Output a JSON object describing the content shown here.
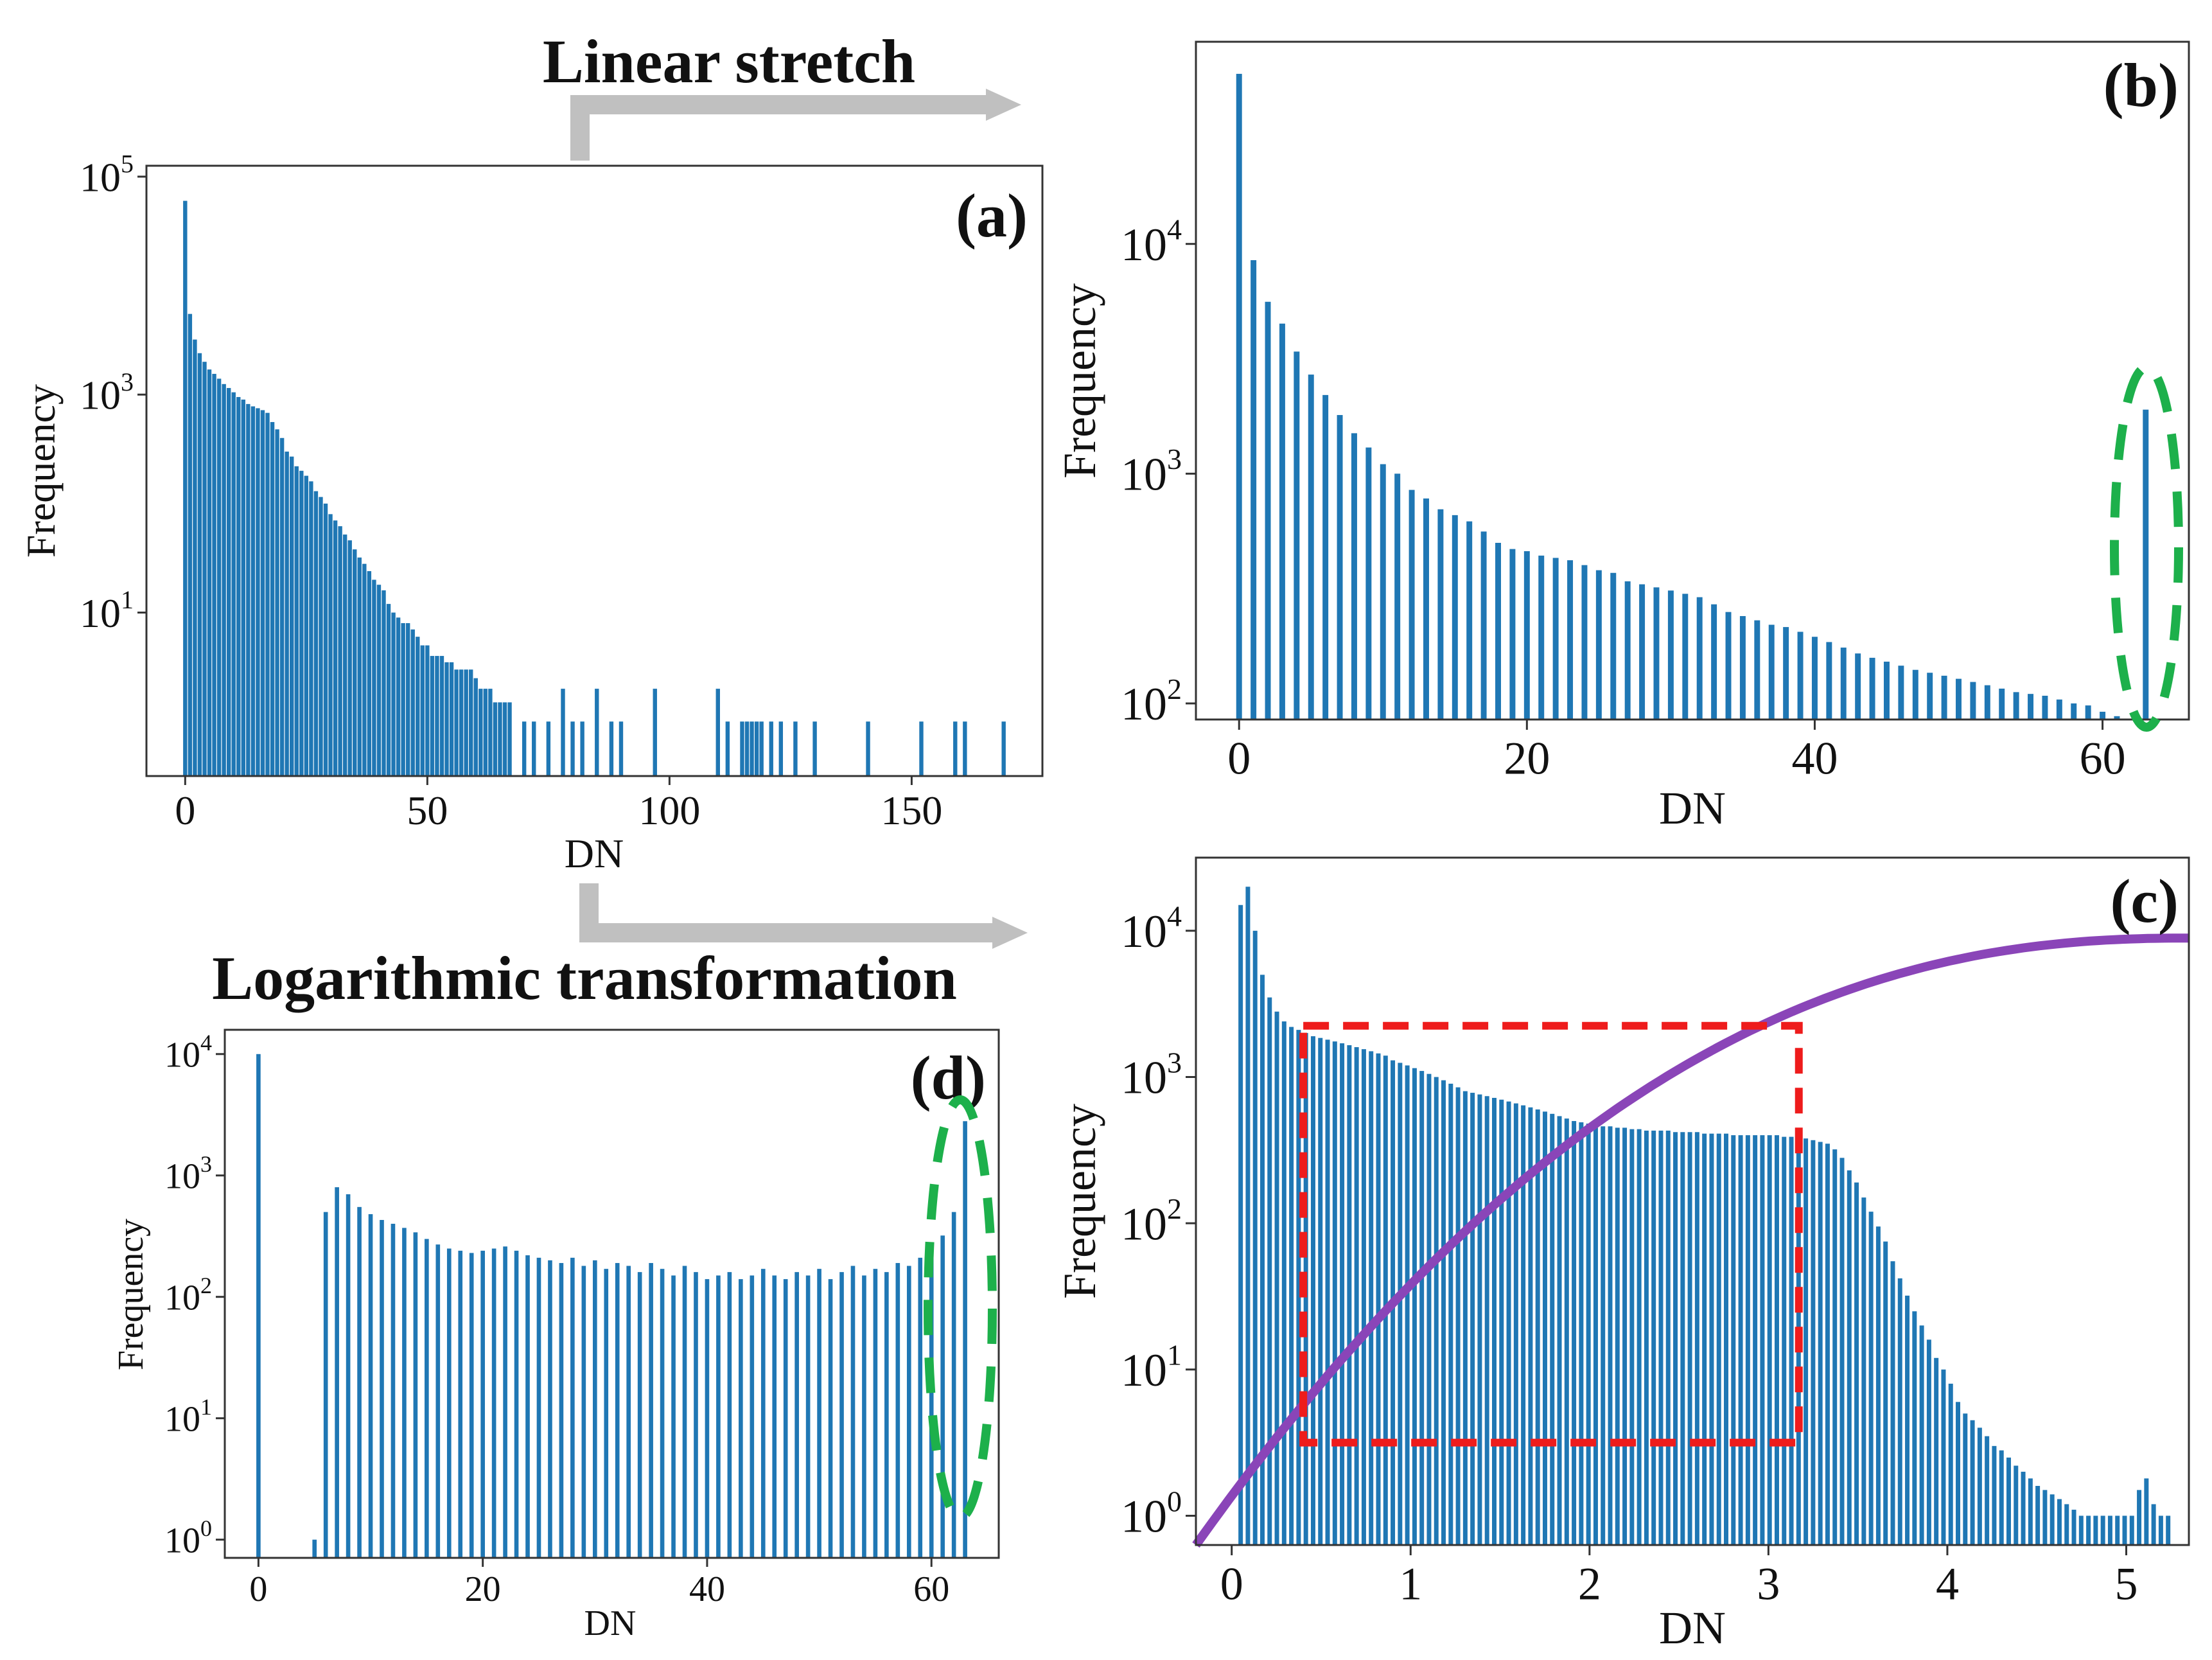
{
  "figure": {
    "colors": {
      "bar": "#1f77b4",
      "arrow": "#c0c0c0",
      "highlight_ellipse": "#1db04b",
      "highlight_box": "#ee1c1c",
      "curve": "#8a45b8",
      "axis": "#333333"
    },
    "arrows": [
      {
        "label": "Linear stretch",
        "from": "(a)",
        "to": "(b)"
      },
      {
        "label": "Logarithmic transformation",
        "from": "(a)",
        "to": "(c)"
      }
    ]
  },
  "chart_data": [
    {
      "panel": "(a)",
      "type": "bar",
      "yscale": "log",
      "xlabel": "DN",
      "ylabel": "Frequency",
      "xlim": [
        -8,
        177
      ],
      "ylim_log10": [
        -0.5,
        5.1
      ],
      "xticks": [
        0,
        50,
        100,
        150
      ],
      "xtick_labels": [
        "0",
        "50",
        "100",
        "150"
      ],
      "yticks_log10": [
        1,
        3,
        5
      ],
      "ytick_labels": [
        {
          "base": "10",
          "exp": "1"
        },
        {
          "base": "10",
          "exp": "3"
        },
        {
          "base": "10",
          "exp": "5"
        }
      ],
      "bar_width": 0.85,
      "x": [
        0,
        1,
        2,
        3,
        4,
        5,
        6,
        7,
        8,
        9,
        10,
        11,
        12,
        13,
        14,
        15,
        16,
        17,
        18,
        19,
        20,
        21,
        22,
        23,
        24,
        25,
        26,
        27,
        28,
        29,
        30,
        31,
        32,
        33,
        34,
        35,
        36,
        37,
        38,
        39,
        40,
        41,
        42,
        43,
        44,
        45,
        46,
        47,
        48,
        49,
        50,
        51,
        52,
        53,
        54,
        55,
        56,
        57,
        58,
        59,
        60,
        61,
        62,
        63,
        64,
        65,
        66,
        67,
        70,
        72,
        75,
        78,
        80,
        82,
        85,
        88,
        90,
        97,
        110,
        112,
        115,
        116,
        117,
        118,
        119,
        121,
        123,
        126,
        130,
        141,
        152,
        159,
        161,
        169
      ],
      "y": [
        60000,
        5500,
        3200,
        2400,
        2000,
        1700,
        1550,
        1400,
        1250,
        1150,
        1050,
        950,
        900,
        820,
        780,
        750,
        720,
        680,
        560,
        480,
        400,
        300,
        270,
        220,
        200,
        180,
        160,
        130,
        115,
        100,
        80,
        70,
        62,
        52,
        46,
        38,
        32,
        28,
        24,
        20,
        18,
        16,
        12,
        10,
        9,
        8,
        8,
        7,
        6,
        5,
        5,
        4,
        4,
        4,
        3.5,
        3.5,
        3,
        3,
        3,
        3,
        2.5,
        2,
        2,
        2,
        1.5,
        1.5,
        1.5,
        1.5,
        1,
        1,
        1,
        2,
        1,
        1,
        2,
        1,
        1,
        2,
        2,
        1,
        1,
        1,
        1,
        1,
        1,
        1,
        1,
        1,
        1,
        1,
        1,
        1,
        1,
        1
      ]
    },
    {
      "panel": "(b)",
      "type": "bar",
      "yscale": "log",
      "xlabel": "DN",
      "ylabel": "Frequency",
      "xlim": [
        -3,
        66
      ],
      "ylim_log10": [
        1.93,
        4.88
      ],
      "xticks": [
        0,
        20,
        40,
        60
      ],
      "xtick_labels": [
        "0",
        "20",
        "40",
        "60"
      ],
      "yticks_log10": [
        2,
        3,
        4
      ],
      "ytick_labels": [
        {
          "base": "10",
          "exp": "2"
        },
        {
          "base": "10",
          "exp": "3"
        },
        {
          "base": "10",
          "exp": "4"
        }
      ],
      "bar_width": 0.4,
      "x": [
        0,
        1,
        2,
        3,
        4,
        5,
        6,
        7,
        8,
        9,
        10,
        11,
        12,
        13,
        14,
        15,
        16,
        17,
        18,
        19,
        20,
        21,
        22,
        23,
        24,
        25,
        26,
        27,
        28,
        29,
        30,
        31,
        32,
        33,
        34,
        35,
        36,
        37,
        38,
        39,
        40,
        41,
        42,
        43,
        44,
        45,
        46,
        47,
        48,
        49,
        50,
        51,
        52,
        53,
        54,
        55,
        56,
        57,
        58,
        59,
        60,
        61,
        62,
        63
      ],
      "y": [
        55000,
        8500,
        5600,
        4500,
        3400,
        2700,
        2200,
        1800,
        1500,
        1300,
        1100,
        1000,
        850,
        780,
        700,
        660,
        620,
        560,
        500,
        470,
        460,
        440,
        430,
        420,
        400,
        380,
        370,
        340,
        330,
        320,
        310,
        300,
        290,
        270,
        250,
        240,
        230,
        220,
        215,
        205,
        195,
        185,
        175,
        165,
        158,
        152,
        146,
        140,
        136,
        132,
        128,
        124,
        120,
        116,
        112,
        110,
        108,
        104,
        100,
        98,
        92,
        88,
        82,
        1900
      ]
    },
    {
      "panel": "(c)",
      "type": "bar",
      "yscale": "log",
      "xlabel": "DN",
      "ylabel": "Frequency",
      "xlim": [
        -0.2,
        5.35
      ],
      "ylim_log10": [
        -0.2,
        4.5
      ],
      "xticks": [
        0,
        1,
        2,
        3,
        4,
        5
      ],
      "xtick_labels": [
        "0",
        "1",
        "2",
        "3",
        "4",
        "5"
      ],
      "yticks_log10": [
        0,
        1,
        2,
        3,
        4
      ],
      "ytick_labels": [
        {
          "base": "10",
          "exp": "0"
        },
        {
          "base": "10",
          "exp": "1"
        },
        {
          "base": "10",
          "exp": "2"
        },
        {
          "base": "10",
          "exp": "3"
        },
        {
          "base": "10",
          "exp": "4"
        }
      ],
      "bar_x_start": 0.05,
      "bar_x_step": 0.0405,
      "bar_width_frac": 0.62,
      "y": [
        15000,
        20000,
        10000,
        5000,
        3500,
        2800,
        2400,
        2200,
        2100,
        2000,
        1900,
        1850,
        1800,
        1750,
        1700,
        1650,
        1600,
        1550,
        1500,
        1450,
        1400,
        1300,
        1250,
        1200,
        1150,
        1100,
        1050,
        1000,
        950,
        900,
        850,
        800,
        780,
        760,
        740,
        720,
        700,
        680,
        660,
        640,
        620,
        600,
        580,
        560,
        540,
        520,
        500,
        490,
        480,
        470,
        460,
        460,
        450,
        450,
        440,
        440,
        430,
        430,
        430,
        430,
        420,
        420,
        420,
        420,
        410,
        410,
        410,
        410,
        400,
        400,
        400,
        400,
        400,
        400,
        400,
        390,
        390,
        380,
        380,
        370,
        360,
        350,
        320,
        280,
        230,
        190,
        150,
        120,
        95,
        75,
        55,
        42,
        32,
        25,
        20,
        16,
        12,
        10,
        8,
        6,
        5,
        4.5,
        4,
        3.5,
        3,
        2.8,
        2.5,
        2.2,
        2,
        1.8,
        1.6,
        1.5,
        1.4,
        1.3,
        1.2,
        1.1,
        1,
        1,
        1,
        1,
        1,
        1,
        1,
        1,
        1.5,
        1.8,
        1.2,
        1,
        1
      ],
      "curve": {
        "name": "log transform",
        "y_log10_start": -0.2,
        "y_log10_end": 3.95
      },
      "box": {
        "x0": 0.4,
        "x1": 3.17,
        "y0_log10": 0.5,
        "y1_log10": 3.35
      }
    },
    {
      "panel": "(d)",
      "type": "bar",
      "yscale": "log",
      "xlabel": "DN",
      "ylabel": "Frequency",
      "xlim": [
        -3,
        66
      ],
      "ylim_log10": [
        -0.15,
        4.2
      ],
      "xticks": [
        0,
        20,
        40,
        60
      ],
      "xtick_labels": [
        "0",
        "20",
        "40",
        "60"
      ],
      "yticks_log10": [
        0,
        1,
        2,
        3,
        4
      ],
      "ytick_labels": [
        {
          "base": "10",
          "exp": "0"
        },
        {
          "base": "10",
          "exp": "1"
        },
        {
          "base": "10",
          "exp": "2"
        },
        {
          "base": "10",
          "exp": "3"
        },
        {
          "base": "10",
          "exp": "4"
        }
      ],
      "bar_width": 0.38,
      "x": [
        0,
        5,
        6,
        7,
        8,
        9,
        10,
        11,
        12,
        13,
        14,
        15,
        16,
        17,
        18,
        19,
        20,
        21,
        22,
        23,
        24,
        25,
        26,
        27,
        28,
        29,
        30,
        31,
        32,
        33,
        34,
        35,
        36,
        37,
        38,
        39,
        40,
        41,
        42,
        43,
        44,
        45,
        46,
        47,
        48,
        49,
        50,
        51,
        52,
        53,
        54,
        55,
        56,
        57,
        58,
        59,
        60,
        61,
        62,
        63
      ],
      "y": [
        10000,
        1,
        500,
        800,
        700,
        550,
        480,
        430,
        400,
        370,
        340,
        300,
        270,
        250,
        240,
        230,
        240,
        250,
        260,
        240,
        220,
        210,
        200,
        190,
        210,
        180,
        200,
        170,
        190,
        180,
        160,
        190,
        170,
        150,
        180,
        160,
        140,
        150,
        160,
        140,
        150,
        170,
        150,
        140,
        160,
        150,
        170,
        140,
        160,
        180,
        150,
        170,
        160,
        190,
        180,
        210,
        250,
        320,
        500,
        2800
      ]
    }
  ],
  "panels": {
    "a": {
      "tag": "(a)",
      "ylabel": "Frequency",
      "xlabel": "DN"
    },
    "b": {
      "tag": "(b)",
      "ylabel": "Frequency",
      "xlabel": "DN"
    },
    "c": {
      "tag": "(c)",
      "ylabel": "Frequency",
      "xlabel": "DN"
    },
    "d": {
      "tag": "(d)",
      "ylabel": "Frequency",
      "xlabel": "DN"
    }
  },
  "titles": {
    "linear": "Linear stretch",
    "log": "Logarithmic transformation"
  }
}
